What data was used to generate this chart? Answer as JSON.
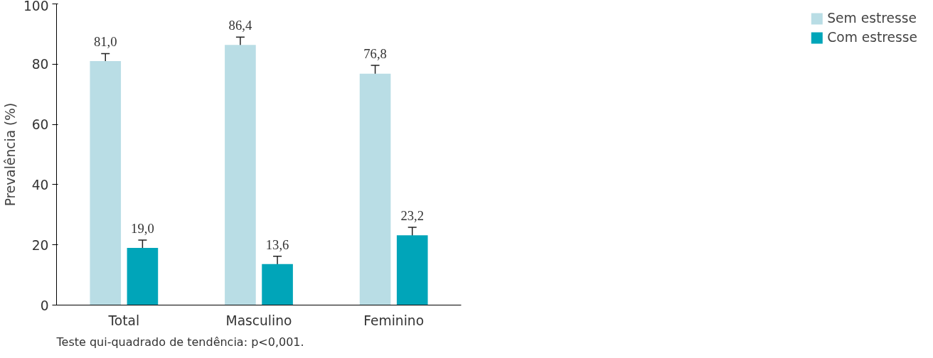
{
  "chart_data": {
    "type": "bar",
    "ylabel": "Prevalência (%)",
    "categories": [
      "Total",
      "Masculino",
      "Feminino"
    ],
    "series": [
      {
        "name": "Sem estresse",
        "color": "#b9dde5",
        "values": [
          81.0,
          86.4,
          76.8
        ],
        "errors": [
          2.5,
          2.6,
          2.8
        ],
        "value_labels": [
          "81,0",
          "86,4",
          "76,8"
        ]
      },
      {
        "name": "Com estresse",
        "color": "#00a5b9",
        "values": [
          19.0,
          13.6,
          23.2
        ],
        "errors": [
          2.6,
          2.6,
          2.6
        ],
        "value_labels": [
          "19,0",
          "13,6",
          "23,2"
        ]
      }
    ],
    "ylim": [
      0,
      100
    ],
    "yticks": [
      0,
      20,
      40,
      60,
      80,
      100
    ],
    "grid": false,
    "legend": "right",
    "annotations": [
      "Teste qui-quadrado de tendência: p<0,001."
    ]
  }
}
